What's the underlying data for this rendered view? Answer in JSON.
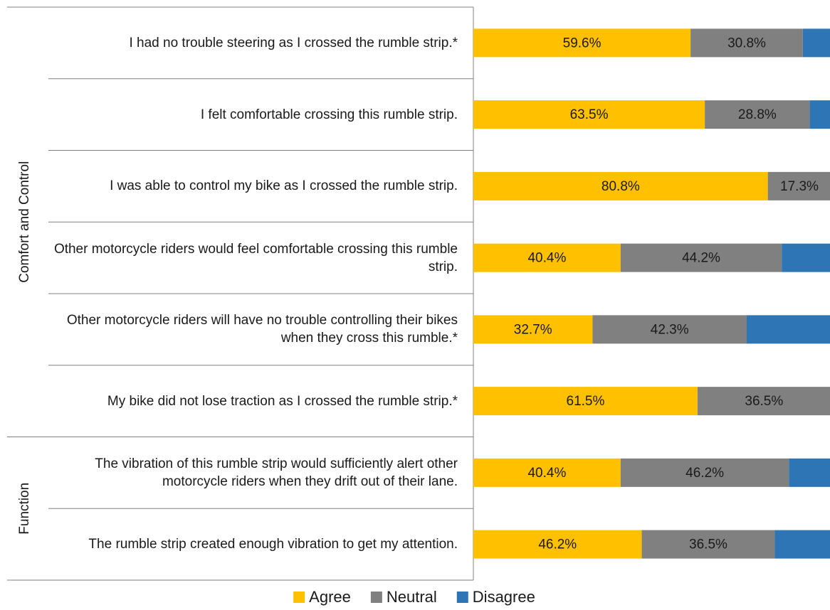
{
  "chart_data": {
    "type": "stacked_bar_horizontal",
    "groups": [
      {
        "label": "Comfort and Control",
        "categories": [
          "I had no trouble steering as I crossed the rumble strip.*",
          "I felt comfortable crossing this rumble strip.",
          "I was able to control my bike as I crossed the rumble strip.",
          "Other motorcycle riders would feel comfortable crossing this rumble strip.",
          "Other motorcycle riders will have no trouble controlling their bikes when they cross this rumble.*",
          "My bike did not lose traction as I crossed the rumble strip.*"
        ]
      },
      {
        "label": "Function",
        "categories": [
          "The vibration of this rumble strip would sufficiently alert other motorcycle riders when they drift out of their lane.",
          "The rumble strip created enough vibration to get my attention."
        ]
      }
    ],
    "series": [
      {
        "name": "Agree",
        "color": "#FFC000",
        "values": [
          59.6,
          63.5,
          80.8,
          40.4,
          32.7,
          61.5,
          40.4,
          46.2
        ],
        "value_labels": [
          "59.6%",
          "63.5%",
          "80.8%",
          "40.4%",
          "32.7%",
          "61.5%",
          "40.4%",
          "46.2%"
        ]
      },
      {
        "name": "Neutral",
        "color": "#808080",
        "values": [
          30.8,
          28.8,
          17.3,
          44.2,
          42.3,
          36.5,
          46.2,
          36.5
        ],
        "value_labels": [
          "30.8%",
          "28.8%",
          "17.3%",
          "44.2%",
          "42.3%",
          "36.5%",
          "46.2%",
          "36.5%"
        ]
      },
      {
        "name": "Disagree",
        "color": "#2E75B6",
        "values": [
          9.6,
          7.7,
          1.9,
          15.4,
          25.0,
          2.0,
          13.4,
          17.3
        ]
      }
    ],
    "xlim": [
      0,
      100
    ]
  }
}
